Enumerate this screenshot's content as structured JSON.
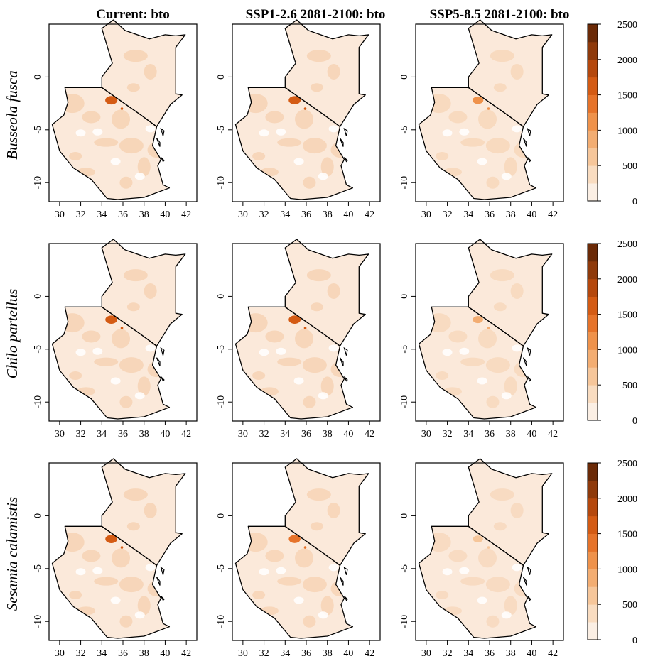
{
  "column_titles": [
    "Current: bto",
    "SSP1-2.6 2081-2100: bto",
    "SSP5-8.5 2081-2100: bto"
  ],
  "row_labels": [
    "Busseola fusca",
    "Chilo partellus",
    "Sesamia calamistis"
  ],
  "x_ticks": [
    "30",
    "32",
    "34",
    "36",
    "38",
    "40",
    "42"
  ],
  "y_ticks": [
    "0",
    "-5",
    "-10"
  ],
  "legend_ticks": [
    "2500",
    "2000",
    "1500",
    "1000",
    "500",
    "0"
  ],
  "colors": {
    "scale": [
      "#fbefe4",
      "#f9dcc0",
      "#f6c69a",
      "#f3ad72",
      "#ef924b",
      "#e6732a",
      "#d45b14",
      "#b5480d",
      "#8f3a0b",
      "#6b2a07"
    ],
    "land_light": "#fbe9da",
    "land_mid": "#f5cda9",
    "hotspot": "#e0661e"
  },
  "chart_data": {
    "type": "heatmap",
    "variable": "bto",
    "x_range": [
      29,
      43
    ],
    "y_range": [
      -11.8,
      5
    ],
    "legend_range": [
      0,
      2500
    ],
    "legend_step": 250,
    "panels": [
      {
        "row": "Busseola fusca",
        "column": "Current: bto",
        "hotspot_value": 1600
      },
      {
        "row": "Busseola fusca",
        "column": "SSP1-2.6 2081-2100: bto",
        "hotspot_value": 1500
      },
      {
        "row": "Busseola fusca",
        "column": "SSP5-8.5 2081-2100: bto",
        "hotspot_value": 1000
      },
      {
        "row": "Chilo partellus",
        "column": "Current: bto",
        "hotspot_value": 1500
      },
      {
        "row": "Chilo partellus",
        "column": "SSP1-2.6 2081-2100: bto",
        "hotspot_value": 1500
      },
      {
        "row": "Chilo partellus",
        "column": "SSP5-8.5 2081-2100: bto",
        "hotspot_value": 800
      },
      {
        "row": "Sesamia calamistis",
        "column": "Current: bto",
        "hotspot_value": 1500
      },
      {
        "row": "Sesamia calamistis",
        "column": "SSP1-2.6 2081-2100: bto",
        "hotspot_value": 1400
      },
      {
        "row": "Sesamia calamistis",
        "column": "SSP5-8.5 2081-2100: bto",
        "hotspot_value": 700
      }
    ]
  }
}
